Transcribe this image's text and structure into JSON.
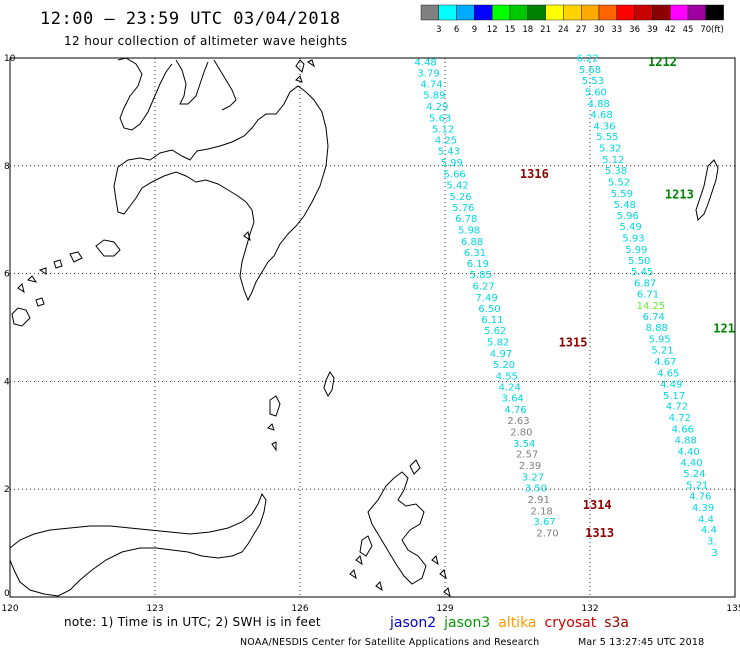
{
  "header": {
    "title": "12:00 – 23:59 UTC 03/04/2018",
    "subtitle": "12 hour collection of altimeter wave heights"
  },
  "color_scale": {
    "unit": "(ft)",
    "labels": [
      "3",
      "6",
      "9",
      "12",
      "15",
      "18",
      "21",
      "24",
      "27",
      "30",
      "33",
      "36",
      "39",
      "42",
      "45",
      "70"
    ],
    "colors": [
      "#808080",
      "#00ffff",
      "#00aaff",
      "#0000ff",
      "#00ff00",
      "#00c800",
      "#008000",
      "#ffff00",
      "#ffd200",
      "#ffaa00",
      "#ff6400",
      "#ff0000",
      "#c80000",
      "#8c0000",
      "#ff00ff",
      "#a000a0",
      "#000000"
    ]
  },
  "axes": {
    "lon_min": 120,
    "lon_max": 135,
    "lat_min": 0,
    "lat_max": 10,
    "x_ticks": [
      {
        "value": 120,
        "label": "120"
      },
      {
        "value": 123,
        "label": "123"
      },
      {
        "value": 126,
        "label": "126"
      },
      {
        "value": 129,
        "label": "129"
      },
      {
        "value": 132,
        "label": "132"
      },
      {
        "value": 135,
        "label": "135"
      }
    ],
    "y_ticks": [
      {
        "value": 0,
        "label": "0"
      },
      {
        "value": 2,
        "label": "2"
      },
      {
        "value": 4,
        "label": "4"
      },
      {
        "value": 6,
        "label": "6"
      },
      {
        "value": 8,
        "label": "8"
      },
      {
        "value": 10,
        "label": "10"
      }
    ]
  },
  "wave_colors": {
    "gray": "#808080",
    "cyan": "#00d8e0",
    "lime": "#66ee33"
  },
  "tracks": [
    {
      "name": "track-a",
      "points": [
        {
          "lon": 128.6,
          "lat": 9.93,
          "v": "4.48",
          "c": "cyan"
        },
        {
          "lon": 128.66,
          "lat": 9.72,
          "v": "3.79",
          "c": "cyan"
        },
        {
          "lon": 128.72,
          "lat": 9.52,
          "v": "4.74",
          "c": "cyan"
        },
        {
          "lon": 128.78,
          "lat": 9.31,
          "v": "5.89",
          "c": "cyan"
        },
        {
          "lon": 128.84,
          "lat": 9.1,
          "v": "4.29",
          "c": "cyan"
        },
        {
          "lon": 128.9,
          "lat": 8.89,
          "v": "5.63",
          "c": "cyan"
        },
        {
          "lon": 128.96,
          "lat": 8.68,
          "v": "5.12",
          "c": "cyan"
        },
        {
          "lon": 129.02,
          "lat": 8.48,
          "v": "4.25",
          "c": "cyan"
        },
        {
          "lon": 129.08,
          "lat": 8.27,
          "v": "5.43",
          "c": "cyan"
        },
        {
          "lon": 129.14,
          "lat": 8.06,
          "v": "5.99",
          "c": "cyan"
        },
        {
          "lon": 129.2,
          "lat": 7.85,
          "v": "5.66",
          "c": "cyan"
        },
        {
          "lon": 129.26,
          "lat": 7.64,
          "v": "5.42",
          "c": "cyan"
        },
        {
          "lon": 129.32,
          "lat": 7.43,
          "v": "5.26",
          "c": "cyan"
        },
        {
          "lon": 129.38,
          "lat": 7.23,
          "v": "5.76",
          "c": "cyan"
        },
        {
          "lon": 129.44,
          "lat": 7.02,
          "v": "6.78",
          "c": "cyan"
        },
        {
          "lon": 129.5,
          "lat": 6.81,
          "v": "5.98",
          "c": "cyan"
        },
        {
          "lon": 129.56,
          "lat": 6.6,
          "v": "6.88",
          "c": "cyan"
        },
        {
          "lon": 129.62,
          "lat": 6.39,
          "v": "6.31",
          "c": "cyan"
        },
        {
          "lon": 129.68,
          "lat": 6.19,
          "v": "6.19",
          "c": "cyan"
        },
        {
          "lon": 129.74,
          "lat": 5.98,
          "v": "5.85",
          "c": "cyan"
        },
        {
          "lon": 129.8,
          "lat": 5.77,
          "v": "6.27",
          "c": "cyan"
        },
        {
          "lon": 129.86,
          "lat": 5.56,
          "v": "7.49",
          "c": "cyan"
        },
        {
          "lon": 129.92,
          "lat": 5.35,
          "v": "6.50",
          "c": "cyan"
        },
        {
          "lon": 129.98,
          "lat": 5.15,
          "v": "6.11",
          "c": "cyan"
        },
        {
          "lon": 130.04,
          "lat": 4.94,
          "v": "5.62",
          "c": "cyan"
        },
        {
          "lon": 130.1,
          "lat": 4.73,
          "v": "5.82",
          "c": "cyan"
        },
        {
          "lon": 130.16,
          "lat": 4.52,
          "v": "4.97",
          "c": "cyan"
        },
        {
          "lon": 130.22,
          "lat": 4.31,
          "v": "5.20",
          "c": "cyan"
        },
        {
          "lon": 130.28,
          "lat": 4.1,
          "v": "4.55",
          "c": "cyan"
        },
        {
          "lon": 130.34,
          "lat": 3.9,
          "v": "4.24",
          "c": "cyan"
        },
        {
          "lon": 130.4,
          "lat": 3.69,
          "v": "3.64",
          "c": "cyan"
        },
        {
          "lon": 130.46,
          "lat": 3.48,
          "v": "4.76",
          "c": "cyan"
        },
        {
          "lon": 130.52,
          "lat": 3.27,
          "v": "2.63",
          "c": "gray"
        },
        {
          "lon": 130.58,
          "lat": 3.06,
          "v": "2.80",
          "c": "gray"
        },
        {
          "lon": 130.64,
          "lat": 2.85,
          "v": "3.54",
          "c": "cyan"
        },
        {
          "lon": 130.7,
          "lat": 2.65,
          "v": "2.57",
          "c": "gray"
        },
        {
          "lon": 130.76,
          "lat": 2.44,
          "v": "2.39",
          "c": "gray"
        },
        {
          "lon": 130.82,
          "lat": 2.23,
          "v": "3.27",
          "c": "cyan"
        },
        {
          "lon": 130.88,
          "lat": 2.02,
          "v": "3.50",
          "c": "cyan"
        },
        {
          "lon": 130.94,
          "lat": 1.81,
          "v": "2.91",
          "c": "gray"
        },
        {
          "lon": 131.0,
          "lat": 1.6,
          "v": "2.18",
          "c": "gray"
        },
        {
          "lon": 131.06,
          "lat": 1.4,
          "v": "3.67",
          "c": "cyan"
        },
        {
          "lon": 131.12,
          "lat": 1.19,
          "v": "2.70",
          "c": "gray"
        }
      ]
    },
    {
      "name": "track-b",
      "points": [
        {
          "lon": 131.95,
          "lat": 10.0,
          "v": "6.22",
          "c": "cyan"
        },
        {
          "lon": 132.0,
          "lat": 9.79,
          "v": "5.68",
          "c": "cyan"
        },
        {
          "lon": 132.06,
          "lat": 9.58,
          "v": "5.53",
          "c": "cyan"
        },
        {
          "lon": 132.12,
          "lat": 9.37,
          "v": "5.60",
          "c": "cyan"
        },
        {
          "lon": 132.18,
          "lat": 9.16,
          "v": "4.88",
          "c": "cyan"
        },
        {
          "lon": 132.24,
          "lat": 8.95,
          "v": "4.68",
          "c": "cyan"
        },
        {
          "lon": 132.3,
          "lat": 8.74,
          "v": "4.36",
          "c": "cyan"
        },
        {
          "lon": 132.36,
          "lat": 8.54,
          "v": "5.55",
          "c": "cyan"
        },
        {
          "lon": 132.42,
          "lat": 8.33,
          "v": "5.32",
          "c": "cyan"
        },
        {
          "lon": 132.48,
          "lat": 8.12,
          "v": "5.12",
          "c": "cyan"
        },
        {
          "lon": 132.54,
          "lat": 7.91,
          "v": "5.38",
          "c": "cyan"
        },
        {
          "lon": 132.6,
          "lat": 7.7,
          "v": "5.52",
          "c": "cyan"
        },
        {
          "lon": 132.66,
          "lat": 7.49,
          "v": "5.59",
          "c": "cyan"
        },
        {
          "lon": 132.72,
          "lat": 7.28,
          "v": "5.48",
          "c": "cyan"
        },
        {
          "lon": 132.78,
          "lat": 7.08,
          "v": "5.96",
          "c": "cyan"
        },
        {
          "lon": 132.84,
          "lat": 6.87,
          "v": "5.49",
          "c": "cyan"
        },
        {
          "lon": 132.9,
          "lat": 6.66,
          "v": "5.93",
          "c": "cyan"
        },
        {
          "lon": 132.96,
          "lat": 6.45,
          "v": "5.99",
          "c": "cyan"
        },
        {
          "lon": 133.02,
          "lat": 6.24,
          "v": "5.50",
          "c": "cyan"
        },
        {
          "lon": 133.08,
          "lat": 6.04,
          "v": "5.45",
          "c": "cyan"
        },
        {
          "lon": 133.14,
          "lat": 5.83,
          "v": "6.87",
          "c": "cyan"
        },
        {
          "lon": 133.2,
          "lat": 5.62,
          "v": "6.71",
          "c": "cyan"
        },
        {
          "lon": 133.26,
          "lat": 5.41,
          "v": "14.25",
          "c": "lime"
        },
        {
          "lon": 133.32,
          "lat": 5.2,
          "v": "6.74",
          "c": "cyan"
        },
        {
          "lon": 133.38,
          "lat": 5.0,
          "v": "8.88",
          "c": "cyan"
        },
        {
          "lon": 133.44,
          "lat": 4.79,
          "v": "5.95",
          "c": "cyan"
        },
        {
          "lon": 133.5,
          "lat": 4.58,
          "v": "5.21",
          "c": "cyan"
        },
        {
          "lon": 133.56,
          "lat": 4.37,
          "v": "4.67",
          "c": "cyan"
        },
        {
          "lon": 133.62,
          "lat": 4.16,
          "v": "4.65",
          "c": "cyan"
        },
        {
          "lon": 133.68,
          "lat": 3.95,
          "v": "4.49",
          "c": "cyan"
        },
        {
          "lon": 133.74,
          "lat": 3.74,
          "v": "5.17",
          "c": "cyan"
        },
        {
          "lon": 133.8,
          "lat": 3.54,
          "v": "4.72",
          "c": "cyan"
        },
        {
          "lon": 133.86,
          "lat": 3.33,
          "v": "4.72",
          "c": "cyan"
        },
        {
          "lon": 133.92,
          "lat": 3.12,
          "v": "4.66",
          "c": "cyan"
        },
        {
          "lon": 133.98,
          "lat": 2.91,
          "v": "4.88",
          "c": "cyan"
        },
        {
          "lon": 134.04,
          "lat": 2.7,
          "v": "4.40",
          "c": "cyan"
        },
        {
          "lon": 134.1,
          "lat": 2.5,
          "v": "4.40",
          "c": "cyan"
        },
        {
          "lon": 134.16,
          "lat": 2.29,
          "v": "5.24",
          "c": "cyan"
        },
        {
          "lon": 134.22,
          "lat": 2.08,
          "v": "5.21",
          "c": "cyan"
        },
        {
          "lon": 134.28,
          "lat": 1.87,
          "v": "4.76",
          "c": "cyan"
        },
        {
          "lon": 134.34,
          "lat": 1.66,
          "v": "4.39",
          "c": "cyan"
        },
        {
          "lon": 134.4,
          "lat": 1.45,
          "v": "4.4",
          "c": "cyan"
        },
        {
          "lon": 134.46,
          "lat": 1.25,
          "v": "4.4",
          "c": "cyan"
        },
        {
          "lon": 134.52,
          "lat": 1.04,
          "v": "3.",
          "c": "cyan"
        },
        {
          "lon": 134.58,
          "lat": 0.83,
          "v": "3",
          "c": "cyan"
        }
      ]
    }
  ],
  "pass_labels": [
    {
      "text": "1212",
      "lon": 133.2,
      "lat": 9.93,
      "color": "#008000"
    },
    {
      "text": "1316",
      "lon": 130.55,
      "lat": 7.85,
      "color": "#8b0000"
    },
    {
      "text": "1213",
      "lon": 133.55,
      "lat": 7.47,
      "color": "#008000"
    },
    {
      "text": "121",
      "lon": 134.55,
      "lat": 4.98,
      "color": "#008000"
    },
    {
      "text": "1315",
      "lon": 131.35,
      "lat": 4.72,
      "color": "#8b0000"
    },
    {
      "text": "1314",
      "lon": 131.85,
      "lat": 1.71,
      "color": "#8b0000"
    },
    {
      "text": "1313",
      "lon": 131.9,
      "lat": 1.19,
      "color": "#8b0000"
    }
  ],
  "note": "note: 1) Time is in UTC; 2) SWH is in feet",
  "satellites": [
    {
      "name": "jason2",
      "color": "#0000cc"
    },
    {
      "name": "jason3",
      "color": "#009900"
    },
    {
      "name": "altika",
      "color": "#ff9900"
    },
    {
      "name": "cryosat",
      "color": "#cc0000"
    },
    {
      "name": "s3a",
      "color": "#990000"
    }
  ],
  "footer": {
    "credit": "NOAA/NESDIS Center for Satellite Applications and Research",
    "timestamp": "Mar  5 13:27:45 UTC 2018"
  }
}
